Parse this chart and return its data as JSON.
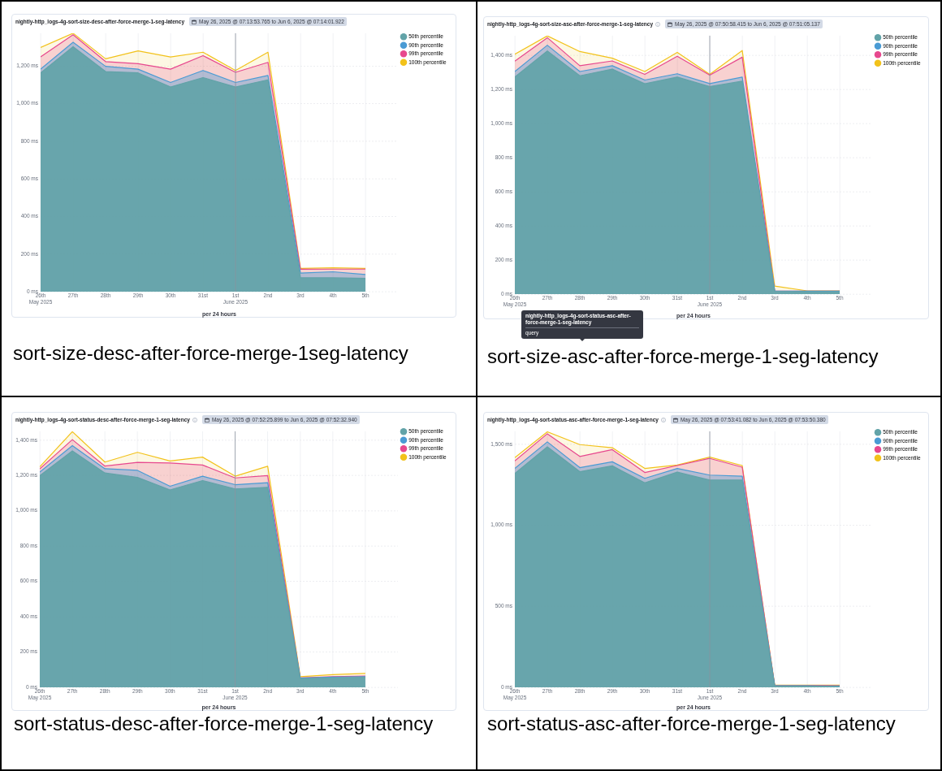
{
  "chart_data": [
    {
      "type": "area",
      "title": "nightly-http_logs-4g-sort-size-desc-after-force-merge-1-seg-latency",
      "subtitle": "May 26, 2025 @ 07:13:53.765 to Jun 6, 2025 @ 07:14:01.922",
      "xlabel": "per 24 hours",
      "annotations": [
        "sort-size-desc-after-force-merge-1seg-latency"
      ],
      "x": [
        "2025-05-26",
        "2025-05-27",
        "2025-05-28",
        "2025-05-29",
        "2025-05-30",
        "2025-05-31",
        "2025-06-01",
        "2025-06-02",
        "2025-06-03",
        "2025-06-04",
        "2025-06-05"
      ],
      "xlim": [
        "2025-05-26",
        "2025-06-06"
      ],
      "xticks": [
        {
          "value": "2025-05-26",
          "label": "26th May 2025"
        },
        {
          "value": "2025-05-27",
          "label": "27th"
        },
        {
          "value": "2025-05-28",
          "label": "28th"
        },
        {
          "value": "2025-05-29",
          "label": "29th"
        },
        {
          "value": "2025-05-30",
          "label": "30th"
        },
        {
          "value": "2025-05-31",
          "label": "31st"
        },
        {
          "value": "2025-06-01",
          "label": "1st June 2025"
        },
        {
          "value": "2025-06-02",
          "label": "2nd"
        },
        {
          "value": "2025-06-03",
          "label": "3rd"
        },
        {
          "value": "2025-06-04",
          "label": "4th"
        },
        {
          "value": "2025-06-05",
          "label": "5th"
        }
      ],
      "ylim": [
        0,
        1375
      ],
      "yticks": [
        {
          "value": 0,
          "label": "0 ms"
        },
        {
          "value": 200,
          "label": "200 ms"
        },
        {
          "value": 400,
          "label": "400 ms"
        },
        {
          "value": 600,
          "label": "600 ms"
        },
        {
          "value": 800,
          "label": "800 ms"
        },
        {
          "value": 1000,
          "label": "1,000 ms"
        },
        {
          "value": 1200,
          "label": "1,200 ms"
        }
      ],
      "grid": true,
      "legend": "top right",
      "ref_lines": [
        {
          "axis": "x",
          "value": "2025-06-01",
          "color": "#8c939e"
        }
      ],
      "series": [
        {
          "name": "50th percentile",
          "color": "#62a3a8",
          "values": [
            1164,
            1303,
            1171,
            1164,
            1089,
            1139,
            1089,
            1127,
            74,
            74,
            71
          ]
        },
        {
          "name": "90th percentile",
          "color": "#4a9bd4",
          "values": [
            1184,
            1327,
            1199,
            1184,
            1113,
            1177,
            1113,
            1150,
            99,
            106,
            91
          ]
        },
        {
          "name": "99th percentile",
          "color": "#e7488e",
          "values": [
            1249,
            1367,
            1224,
            1213,
            1184,
            1256,
            1167,
            1220,
            119,
            120,
            120
          ]
        },
        {
          "name": "100th percentile",
          "color": "#f2c21b",
          "values": [
            1299,
            1375,
            1239,
            1281,
            1249,
            1274,
            1177,
            1274,
            124,
            127,
            124
          ]
        }
      ]
    },
    {
      "type": "area",
      "title": "nightly-http_logs-4g-sort-size-asc-after-force-merge-1-seg-latency",
      "subtitle": "May 26, 2025 @ 07:50:58.415 to Jun 6, 2025 @ 07:51:05.137",
      "xlabel": "per 24 hours",
      "annotations": [
        "sort-size-asc-after-force-merge-1-seg-latency",
        "nightly-http_logs-4g-sort-status-asc-after-force-merge-1-seg-latency",
        "query"
      ],
      "x": [
        "2025-05-26",
        "2025-05-27",
        "2025-05-28",
        "2025-05-29",
        "2025-05-30",
        "2025-05-31",
        "2025-06-01",
        "2025-06-02",
        "2025-06-03",
        "2025-06-04",
        "2025-06-05"
      ],
      "xlim": [
        "2025-05-26",
        "2025-06-06"
      ],
      "xticks": [
        {
          "value": "2025-05-26",
          "label": "26th May 2025"
        },
        {
          "value": "2025-05-27",
          "label": "27th"
        },
        {
          "value": "2025-05-28",
          "label": "28th"
        },
        {
          "value": "2025-05-29",
          "label": "29th"
        },
        {
          "value": "2025-05-30",
          "label": "30th"
        },
        {
          "value": "2025-05-31",
          "label": "31st"
        },
        {
          "value": "2025-06-01",
          "label": "1st June 2025"
        },
        {
          "value": "2025-06-02",
          "label": "2nd"
        },
        {
          "value": "2025-06-03",
          "label": "3rd"
        },
        {
          "value": "2025-06-04",
          "label": "4th"
        },
        {
          "value": "2025-06-05",
          "label": "5th"
        }
      ],
      "ylim": [
        0,
        1515
      ],
      "yticks": [
        {
          "value": 0,
          "label": "0 ms"
        },
        {
          "value": 200,
          "label": "200 ms"
        },
        {
          "value": 400,
          "label": "400 ms"
        },
        {
          "value": 600,
          "label": "600 ms"
        },
        {
          "value": 800,
          "label": "800 ms"
        },
        {
          "value": 1000,
          "label": "1,000 ms"
        },
        {
          "value": 1200,
          "label": "1,200 ms"
        },
        {
          "value": 1400,
          "label": "1,400 ms"
        }
      ],
      "grid": true,
      "legend": "top right",
      "ref_lines": [
        {
          "axis": "x",
          "value": "2025-06-01",
          "color": "#8c939e"
        }
      ],
      "series": [
        {
          "name": "50th percentile",
          "color": "#62a3a8",
          "values": [
            1273,
            1425,
            1280,
            1319,
            1233,
            1272,
            1217,
            1248,
            16,
            14,
            14
          ]
        },
        {
          "name": "90th percentile",
          "color": "#4a9bd4",
          "values": [
            1305,
            1459,
            1305,
            1339,
            1255,
            1292,
            1234,
            1272,
            19,
            17,
            17
          ]
        },
        {
          "name": "99th percentile",
          "color": "#e7488e",
          "values": [
            1366,
            1503,
            1339,
            1367,
            1288,
            1394,
            1284,
            1389,
            19,
            17,
            17
          ]
        },
        {
          "name": "100th percentile",
          "color": "#f2c21b",
          "values": [
            1406,
            1514,
            1422,
            1383,
            1305,
            1417,
            1288,
            1428,
            47,
            19,
            19
          ]
        }
      ]
    },
    {
      "type": "area",
      "title": "nightly-http_logs-4g-sort-status-desc-after-force-merge-1-seg-latency",
      "subtitle": "May 26, 2025 @ 07:52:25.899 to Jun 6, 2025 @ 07:52:32.940",
      "xlabel": "per 24 hours",
      "annotations": [
        "sort-status-desc-after-force-merge-1-seg-latency"
      ],
      "x": [
        "2025-05-26",
        "2025-05-27",
        "2025-05-28",
        "2025-05-29",
        "2025-05-30",
        "2025-05-31",
        "2025-06-01",
        "2025-06-02",
        "2025-06-03",
        "2025-06-04",
        "2025-06-05"
      ],
      "xlim": [
        "2025-05-26",
        "2025-06-06"
      ],
      "xticks": [
        {
          "value": "2025-05-26",
          "label": "26th May 2025"
        },
        {
          "value": "2025-05-27",
          "label": "27th"
        },
        {
          "value": "2025-05-28",
          "label": "28th"
        },
        {
          "value": "2025-05-29",
          "label": "29th"
        },
        {
          "value": "2025-05-30",
          "label": "30th"
        },
        {
          "value": "2025-05-31",
          "label": "31st"
        },
        {
          "value": "2025-06-01",
          "label": "1st June 2025"
        },
        {
          "value": "2025-06-02",
          "label": "2nd"
        },
        {
          "value": "2025-06-03",
          "label": "3rd"
        },
        {
          "value": "2025-06-04",
          "label": "4th"
        },
        {
          "value": "2025-06-05",
          "label": "5th"
        }
      ],
      "ylim": [
        0,
        1450
      ],
      "yticks": [
        {
          "value": 0,
          "label": "0 ms"
        },
        {
          "value": 200,
          "label": "200 ms"
        },
        {
          "value": 400,
          "label": "400 ms"
        },
        {
          "value": 600,
          "label": "600 ms"
        },
        {
          "value": 800,
          "label": "800 ms"
        },
        {
          "value": 1000,
          "label": "1,000 ms"
        },
        {
          "value": 1200,
          "label": "1,200 ms"
        },
        {
          "value": 1400,
          "label": "1,400 ms"
        }
      ],
      "grid": true,
      "legend": "top right",
      "ref_lines": [
        {
          "axis": "x",
          "value": "2025-06-01",
          "color": "#8c939e"
        }
      ],
      "series": [
        {
          "name": "50th percentile",
          "color": "#62a3a8",
          "values": [
            1199,
            1339,
            1214,
            1189,
            1118,
            1171,
            1124,
            1133,
            49,
            54,
            57
          ]
        },
        {
          "name": "90th percentile",
          "color": "#4a9bd4",
          "values": [
            1219,
            1369,
            1238,
            1229,
            1139,
            1196,
            1148,
            1159,
            52,
            58,
            61
          ]
        },
        {
          "name": "99th percentile",
          "color": "#e7488e",
          "values": [
            1238,
            1403,
            1253,
            1274,
            1271,
            1259,
            1186,
            1199,
            54,
            61,
            64
          ]
        },
        {
          "name": "100th percentile",
          "color": "#f2c21b",
          "values": [
            1249,
            1448,
            1276,
            1331,
            1282,
            1304,
            1196,
            1252,
            60,
            72,
            79
          ]
        }
      ]
    },
    {
      "type": "area",
      "title": "nightly-http_logs-4g-sort-status-asc-after-force-merge-1-seg-latency",
      "subtitle": "May 26, 2025 @ 07:53:41.082 to Jun 6, 2025 @ 07:53:50.380",
      "xlabel": "per 24 hours",
      "annotations": [
        "sort-status-asc-after-force-merge-1-seg-latency"
      ],
      "x": [
        "2025-05-26",
        "2025-05-27",
        "2025-05-28",
        "2025-05-29",
        "2025-05-30",
        "2025-05-31",
        "2025-06-01",
        "2025-06-02",
        "2025-06-03",
        "2025-06-04",
        "2025-06-05"
      ],
      "xlim": [
        "2025-05-26",
        "2025-06-06"
      ],
      "xticks": [
        {
          "value": "2025-05-26",
          "label": "26th May 2025"
        },
        {
          "value": "2025-05-27",
          "label": "27th"
        },
        {
          "value": "2025-05-28",
          "label": "28th"
        },
        {
          "value": "2025-05-29",
          "label": "29th"
        },
        {
          "value": "2025-05-30",
          "label": "30th"
        },
        {
          "value": "2025-05-31",
          "label": "31st"
        },
        {
          "value": "2025-06-01",
          "label": "1st June 2025"
        },
        {
          "value": "2025-06-02",
          "label": "2nd"
        },
        {
          "value": "2025-06-03",
          "label": "3rd"
        },
        {
          "value": "2025-06-04",
          "label": "4th"
        },
        {
          "value": "2025-06-05",
          "label": "5th"
        }
      ],
      "ylim": [
        0,
        1580
      ],
      "yticks": [
        {
          "value": 0,
          "label": "0 ms"
        },
        {
          "value": 500,
          "label": "500 ms"
        },
        {
          "value": 1000,
          "label": "1,000 ms"
        },
        {
          "value": 1500,
          "label": "1,500 ms"
        }
      ],
      "grid": true,
      "legend": "top right",
      "ref_lines": [
        {
          "axis": "x",
          "value": "2025-06-01",
          "color": "#8c939e"
        }
      ],
      "series": [
        {
          "name": "50th percentile",
          "color": "#62a3a8",
          "values": [
            1320,
            1484,
            1331,
            1367,
            1262,
            1328,
            1279,
            1279,
            8,
            8,
            5
          ]
        },
        {
          "name": "90th percentile",
          "color": "#4a9bd4",
          "values": [
            1351,
            1515,
            1356,
            1392,
            1290,
            1351,
            1310,
            1303,
            10,
            10,
            8
          ]
        },
        {
          "name": "99th percentile",
          "color": "#e7488e",
          "values": [
            1397,
            1565,
            1425,
            1467,
            1326,
            1369,
            1413,
            1359,
            11,
            11,
            10
          ]
        },
        {
          "name": "100th percentile",
          "color": "#f2c21b",
          "values": [
            1418,
            1577,
            1498,
            1479,
            1351,
            1372,
            1421,
            1369,
            13,
            13,
            13
          ]
        }
      ]
    }
  ]
}
